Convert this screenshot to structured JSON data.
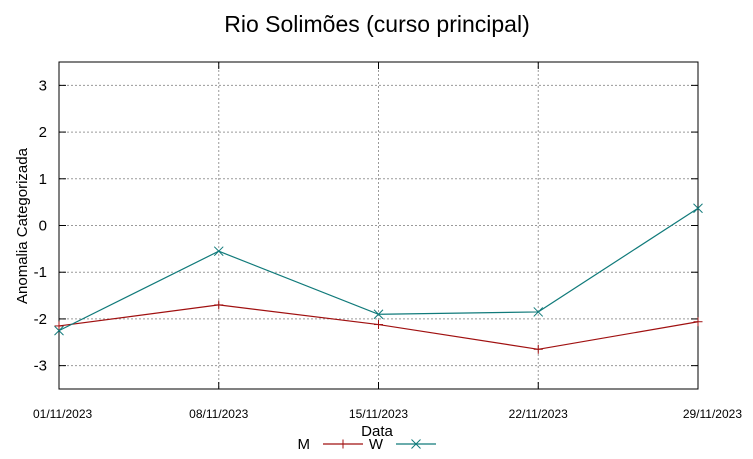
{
  "chart_data": {
    "type": "line",
    "title": "Rio Solimões (curso principal)",
    "xlabel": "Data",
    "ylabel": "Anomalia Categorizada",
    "categories": [
      "01/11/2023",
      "08/11/2023",
      "15/11/2023",
      "22/11/2023",
      "29/11/2023"
    ],
    "ylim": [
      -3.5,
      3.5
    ],
    "yticks": [
      "3",
      "2",
      "1",
      "0",
      "-1",
      "-2",
      "-3"
    ],
    "ytick_values": [
      3,
      2,
      1,
      0,
      -1,
      -2,
      -3
    ],
    "grid": true,
    "legend_position": "bottom-center",
    "series": [
      {
        "name": "M",
        "color": "#a01010",
        "marker": "plus",
        "values": [
          -2.15,
          -1.7,
          -2.12,
          -2.65,
          -2.06
        ]
      },
      {
        "name": "W",
        "color": "#107a7a",
        "marker": "cross",
        "values": [
          -2.25,
          -0.55,
          -1.9,
          -1.85,
          0.37
        ]
      }
    ]
  }
}
